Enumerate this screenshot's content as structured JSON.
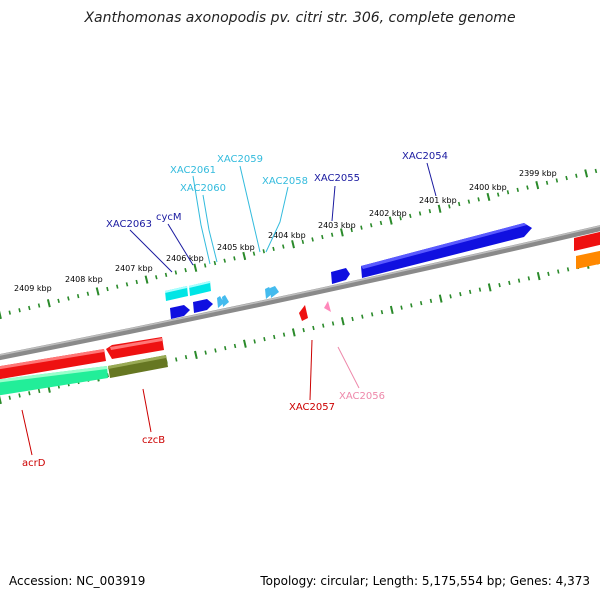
{
  "title": "Xanthomonas axonopodis pv. citri str. 306, complete genome",
  "accession": "Accession: NC_003919",
  "summary": "Topology: circular; Length: 5,175,554 bp; Genes: 4,373",
  "colors": {
    "backbone": "#7a7a7a",
    "tick": "#2a8a2a",
    "label_dark_blue": "#1a1aa0",
    "label_cyan": "#33bbdd",
    "label_red": "#cc0000",
    "label_pink": "#ee88aa",
    "gene_blue": "#1010e0",
    "gene_cyan": "#00e5e5",
    "gene_light_blue": "#44bbee",
    "gene_red": "#ee1111",
    "gene_green": "#22ee99",
    "gene_olive": "#667722",
    "gene_orange": "#ff8800",
    "gene_pink": "#ff88bb"
  },
  "kbp_labels": [
    "2399 kbp",
    "2400 kbp",
    "2401 kbp",
    "2402 kbp",
    "2403 kbp",
    "2404 kbp",
    "2405 kbp",
    "2406 kbp",
    "2407 kbp",
    "2408 kbp",
    "2409 kbp"
  ],
  "genes": [
    {
      "name": "XAC2054",
      "color": "#1a1aa0"
    },
    {
      "name": "XAC2055",
      "color": "#1a1aa0"
    },
    {
      "name": "XAC2058",
      "color": "#33bbdd"
    },
    {
      "name": "XAC2059",
      "color": "#33bbdd"
    },
    {
      "name": "XAC2060",
      "color": "#33bbdd"
    },
    {
      "name": "XAC2061",
      "color": "#33bbdd"
    },
    {
      "name": "cycM",
      "color": "#1a1aa0"
    },
    {
      "name": "XAC2063",
      "color": "#1a1aa0"
    },
    {
      "name": "XAC2057",
      "color": "#cc0000"
    },
    {
      "name": "XAC2056",
      "color": "#ee88aa"
    },
    {
      "name": "czcB",
      "color": "#cc0000"
    },
    {
      "name": "acrD",
      "color": "#cc0000"
    }
  ]
}
